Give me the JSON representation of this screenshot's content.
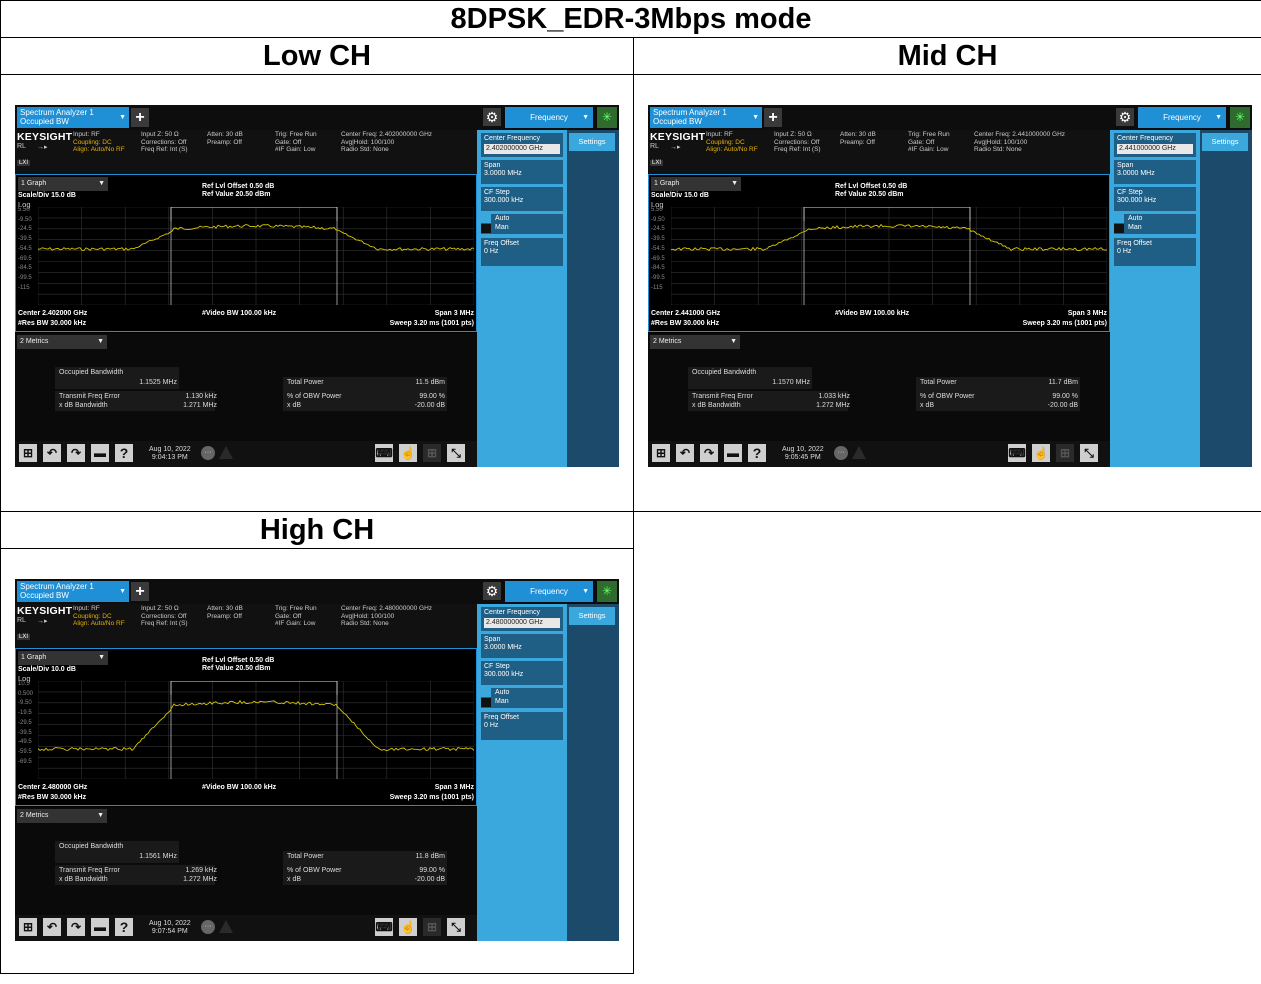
{
  "title": "8DPSK_EDR-3Mbps mode",
  "panels": {
    "low": {
      "header": "Low CH",
      "screen": {
        "tab_line1": "Spectrum Analyzer 1",
        "tab_line2": "Occupied BW",
        "freq_button": "Frequency",
        "logo": "KEYSIGHT",
        "rl": "RL",
        "lxi": "LXI",
        "col1": [
          "Input: RF",
          "Coupling: DC",
          "Align: Auto/No RF"
        ],
        "col2": [
          "Input Z: 50 Ω",
          "Corrections: Off",
          "Freq Ref: Int (S)"
        ],
        "col3": [
          "Atten: 30 dB",
          "Preamp: Off"
        ],
        "col4": [
          "Trig: Free Run",
          "Gate: Off",
          "#IF Gain: Low"
        ],
        "col5": [
          "Center Freq: 2.402000000 GHz",
          "Avg|Hold: 100/100",
          "Radio Std: None"
        ],
        "graph_sel": "1 Graph",
        "scale_div": "Scale/Div 15.0 dB",
        "ref_offset": "Ref Lvl Offset 0.50 dB",
        "ref_value": "Ref Value 20.50 dBm",
        "log": "Log",
        "ticks": [
          "5.50",
          "-9.50",
          "-24.5",
          "-39.5",
          "-54.5",
          "-69.5",
          "-84.5",
          "-99.5",
          "-115"
        ],
        "center": "Center 2.402000 GHz",
        "rbw": "#Res BW 30.000 kHz",
        "vbw": "#Video BW 100.00 kHz",
        "span": "Span 3 MHz",
        "sweep": "Sweep 3.20 ms (1001 pts)",
        "metrics_sel": "2 Metrics",
        "obw_label": "Occupied Bandwidth",
        "obw_value": "1.1525 MHz",
        "tfe_label": "Transmit Freq Error",
        "tfe_value": "1.130 kHz",
        "xdb_bw_label": "x dB Bandwidth",
        "xdb_bw_value": "1.271 MHz",
        "tp_label": "Total Power",
        "tp_value": "11.5 dBm",
        "obwp_label": "% of OBW Power",
        "obwp_value": "99.00 %",
        "xdb_label": "x dB",
        "xdb_value": "-20.00 dB",
        "date": "Aug 10, 2022",
        "time": "9:04:13 PM",
        "cf_label": "Center Frequency",
        "cf_value": "2.402000000 GHz",
        "span_label": "Span",
        "span_value": "3.0000 MHz",
        "cfstep_label": "CF Step",
        "cfstep_value": "300.000 kHz",
        "auto": "Auto",
        "man": "Man",
        "fo_label": "Freq Offset",
        "fo_value": "0 Hz",
        "settings": "Settings",
        "trace_color": "#d8c800"
      }
    },
    "mid": {
      "header": "Mid CH",
      "screen": {
        "tab_line1": "Spectrum Analyzer 1",
        "tab_line2": "Occupied BW",
        "freq_button": "Frequency",
        "logo": "KEYSIGHT",
        "rl": "RL",
        "lxi": "LXI",
        "col1": [
          "Input: RF",
          "Coupling: DC",
          "Align: Auto/No RF"
        ],
        "col2": [
          "Input Z: 50 Ω",
          "Corrections: Off",
          "Freq Ref: Int (S)"
        ],
        "col3": [
          "Atten: 30 dB",
          "Preamp: Off"
        ],
        "col4": [
          "Trig: Free Run",
          "Gate: Off",
          "#IF Gain: Low"
        ],
        "col5": [
          "Center Freq: 2.441000000 GHz",
          "Avg|Hold: 100/100",
          "Radio Std: None"
        ],
        "graph_sel": "1 Graph",
        "scale_div": "Scale/Div 15.0 dB",
        "ref_offset": "Ref Lvl Offset 0.50 dB",
        "ref_value": "Ref Value 20.50 dBm",
        "log": "Log",
        "ticks": [
          "5.50",
          "-9.50",
          "-24.5",
          "-39.5",
          "-54.5",
          "-69.5",
          "-84.5",
          "-99.5",
          "-115"
        ],
        "center": "Center 2.441000 GHz",
        "rbw": "#Res BW 30.000 kHz",
        "vbw": "#Video BW 100.00 kHz",
        "span": "Span 3 MHz",
        "sweep": "Sweep 3.20 ms (1001 pts)",
        "metrics_sel": "2 Metrics",
        "obw_label": "Occupied Bandwidth",
        "obw_value": "1.1570 MHz",
        "tfe_label": "Transmit Freq Error",
        "tfe_value": "1.033 kHz",
        "xdb_bw_label": "x dB Bandwidth",
        "xdb_bw_value": "1.272 MHz",
        "tp_label": "Total Power",
        "tp_value": "11.7 dBm",
        "obwp_label": "% of OBW Power",
        "obwp_value": "99.00 %",
        "xdb_label": "x dB",
        "xdb_value": "-20.00 dB",
        "date": "Aug 10, 2022",
        "time": "9:05:45 PM",
        "cf_label": "Center Frequency",
        "cf_value": "2.441000000 GHz",
        "span_label": "Span",
        "span_value": "3.0000 MHz",
        "cfstep_label": "CF Step",
        "cfstep_value": "300.000 kHz",
        "auto": "Auto",
        "man": "Man",
        "fo_label": "Freq Offset",
        "fo_value": "0 Hz",
        "settings": "Settings",
        "trace_color": "#d8c800"
      }
    },
    "high": {
      "header": "High CH",
      "screen": {
        "tab_line1": "Spectrum Analyzer 1",
        "tab_line2": "Occupied BW",
        "freq_button": "Frequency",
        "logo": "KEYSIGHT",
        "rl": "RL",
        "lxi": "LXI",
        "col1": [
          "Input: RF",
          "Coupling: DC",
          "Align: Auto/No RF"
        ],
        "col2": [
          "Input Z: 50 Ω",
          "Corrections: Off",
          "Freq Ref: Int (S)"
        ],
        "col3": [
          "Atten: 30 dB",
          "Preamp: Off"
        ],
        "col4": [
          "Trig: Free Run",
          "Gate: Off",
          "#IF Gain: Low"
        ],
        "col5": [
          "Center Freq: 2.480000000 GHz",
          "Avg|Hold: 100/100",
          "Radio Std: None"
        ],
        "graph_sel": "1 Graph",
        "scale_div": "Scale/Div 10.0 dB",
        "ref_offset": "Ref Lvl Offset 0.50 dB",
        "ref_value": "Ref Value 20.50 dBm",
        "log": "Log",
        "ticks": [
          "10.5",
          "0.500",
          "-9.50",
          "-19.5",
          "-29.5",
          "-39.5",
          "-49.5",
          "-59.5",
          "-69.5"
        ],
        "center": "Center 2.480000 GHz",
        "rbw": "#Res BW 30.000 kHz",
        "vbw": "#Video BW 100.00 kHz",
        "span": "Span 3 MHz",
        "sweep": "Sweep 3.20 ms (1001 pts)",
        "metrics_sel": "2 Metrics",
        "obw_label": "Occupied Bandwidth",
        "obw_value": "1.1561 MHz",
        "tfe_label": "Transmit Freq Error",
        "tfe_value": "1.269 kHz",
        "xdb_bw_label": "x dB Bandwidth",
        "xdb_bw_value": "1.272 MHz",
        "tp_label": "Total Power",
        "tp_value": "11.8 dBm",
        "obwp_label": "% of OBW Power",
        "obwp_value": "99.00 %",
        "xdb_label": "x dB",
        "xdb_value": "-20.00 dB",
        "date": "Aug 10, 2022",
        "time": "9:07:54 PM",
        "cf_label": "Center Frequency",
        "cf_value": "2.480000000 GHz",
        "span_label": "Span",
        "span_value": "3.0000 MHz",
        "cfstep_label": "CF Step",
        "cfstep_value": "300.000 kHz",
        "auto": "Auto",
        "man": "Man",
        "fo_label": "Freq Offset",
        "fo_value": "0 Hz",
        "settings": "Settings",
        "trace_color": "#d8c800"
      }
    }
  }
}
